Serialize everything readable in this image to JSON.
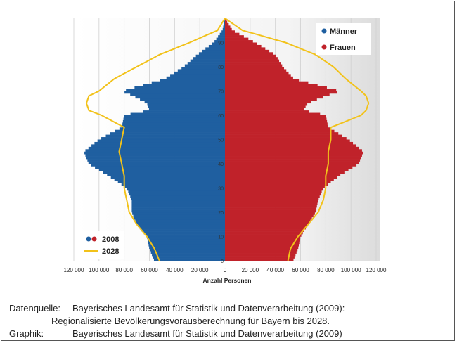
{
  "chart_data": {
    "type": "population-pyramid",
    "xlabel": "Anzahl Personen",
    "x_tick_labels": [
      "120 000",
      "100 000",
      "80 000",
      "60 000",
      "40 000",
      "20 000",
      "0",
      "20 000",
      "40 000",
      "60 000",
      "80 000",
      "100 000",
      "120 000"
    ],
    "xlim": [
      -120000,
      120000
    ],
    "ylim": [
      0,
      100
    ],
    "y_tick_labels": [
      "0",
      "10",
      "20",
      "30",
      "40",
      "50",
      "60",
      "70",
      "80",
      "90"
    ],
    "legend_top": [
      {
        "name": "Männer",
        "color": "#1f5fa0"
      },
      {
        "name": "Frauen",
        "color": "#c0222a"
      }
    ],
    "legend_bottom": [
      {
        "name": "2008",
        "colors": [
          "#1f5fa0",
          "#c0222a"
        ]
      },
      {
        "name": "2028",
        "color": "#f2c21a"
      }
    ],
    "ages": [
      0,
      5,
      10,
      15,
      20,
      25,
      30,
      35,
      40,
      45,
      50,
      55,
      60,
      62,
      65,
      68,
      70,
      75,
      80,
      85,
      90,
      95,
      100
    ],
    "men_2008": [
      56000,
      60000,
      62000,
      70000,
      74000,
      74000,
      78000,
      92000,
      108000,
      112000,
      100000,
      82000,
      80000,
      60000,
      62000,
      73000,
      82000,
      48000,
      33000,
      22000,
      9000,
      2000,
      0
    ],
    "women_2008": [
      54000,
      58000,
      60000,
      66000,
      72000,
      74000,
      78000,
      90000,
      106000,
      110000,
      98000,
      82000,
      80000,
      62000,
      66000,
      80000,
      92000,
      55000,
      46000,
      40000,
      24000,
      6000,
      0
    ],
    "men_2028": [
      52000,
      56000,
      62000,
      70000,
      76000,
      78000,
      80000,
      80000,
      82000,
      84000,
      82000,
      80000,
      98000,
      108000,
      110000,
      108000,
      100000,
      88000,
      70000,
      52000,
      28000,
      6000,
      0
    ],
    "women_2028": [
      50000,
      52000,
      58000,
      66000,
      74000,
      78000,
      80000,
      80000,
      82000,
      82000,
      84000,
      84000,
      108000,
      112000,
      114000,
      112000,
      108000,
      96000,
      86000,
      72000,
      48000,
      14000,
      0
    ]
  },
  "source": {
    "line1_label": "Datenquelle:",
    "line1_text": "Bayerisches Landesamt für Statistik und Datenverarbeitung (2009):",
    "line2_text": "Regionalisierte          Bevölkerungsvorausberechnung für Bayern bis 2028.",
    "line3_label": "Graphik:",
    "line3_text": "Bayerisches Landesamt für Statistik und Datenverarbeitung (2009)"
  }
}
